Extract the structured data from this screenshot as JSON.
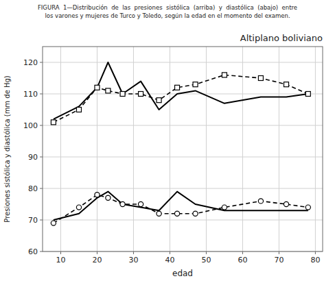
{
  "chart_data": {
    "type": "line",
    "title": "Altiplano boliviano",
    "subtitle": [
      "FIGURA  1—Distribución  de  las  presiones  sistólica  (arriba)  y  diastólica  (abajo)  entre",
      "los varones y mujeres de Turco y Toledo, según la edad en el momento del examen."
    ],
    "x_label": "edad",
    "y_label": "Presiones sistólica y diastólica (mm de Hg)",
    "x": [
      8,
      15,
      20,
      23,
      27,
      32,
      37,
      42,
      47,
      55,
      65,
      72,
      78
    ],
    "series": [
      {
        "color": "#000000",
        "line_style": "solid",
        "marker": "none",
        "values": [
          102,
          106,
          112,
          120,
          110,
          114,
          105,
          110,
          111,
          107,
          109,
          109,
          110
        ]
      },
      {
        "color": "#000000",
        "line_style": "dashed",
        "marker": "square",
        "values": [
          101,
          105,
          112,
          111,
          110,
          110,
          108,
          112,
          113,
          116,
          115,
          113,
          110
        ]
      },
      {
        "color": "#000000",
        "line_style": "solid",
        "marker": "none",
        "values": [
          70,
          72,
          77,
          79,
          75,
          74,
          73,
          79,
          75,
          73,
          73,
          73,
          73
        ]
      },
      {
        "color": "#000000",
        "line_style": "dashed",
        "marker": "circle",
        "values": [
          69,
          74,
          78,
          77,
          75,
          75,
          72,
          72,
          72,
          74,
          76,
          75,
          74
        ]
      }
    ],
    "xlim": [
      5,
      82
    ],
    "xticks": [
      10,
      20,
      30,
      40,
      50,
      60,
      70,
      80
    ],
    "ylim": [
      60,
      125
    ],
    "yticks": [
      60,
      70,
      80,
      90,
      100,
      110,
      120
    ],
    "grid": true
  }
}
